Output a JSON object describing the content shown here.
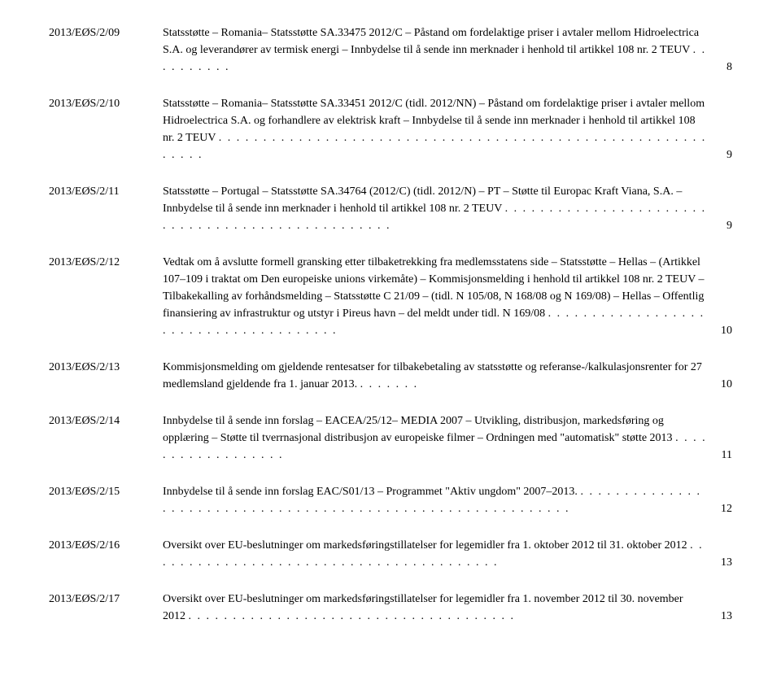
{
  "entries": [
    {
      "id": "2013/EØS/2/09",
      "text": "Statsstøtte – Romania– Statsstøtte SA.33475 2012/C – Påstand om fordelaktige priser i avtaler mellom Hidroelectrica S.A. og leverandører av termisk energi – Innbydelse til å sende inn merknader i henhold til artikkel 108 nr. 2 TEUV",
      "dots": ". . . . . . . . . .",
      "page": "8"
    },
    {
      "id": "2013/EØS/2/10",
      "text": "Statsstøtte – Romania– Statsstøtte SA.33451 2012/C (tidl. 2012/NN) – Påstand om fordelaktige priser i avtaler mellom Hidroelectrica S.A. og forhandlere av elektrisk kraft – Innbydelse til å sende inn merknader i henhold til artikkel 108 nr. 2 TEUV",
      "dots": ". . . . . . . . . . . . . . . . . . . . . . . . . . . . . . . . . . . . . . . . . . . . . . . . . . . . . . . . . . . .",
      "page": "9"
    },
    {
      "id": "2013/EØS/2/11",
      "text": "Statsstøtte – Portugal – Statsstøtte SA.34764 (2012/C) (tidl. 2012/N) – PT – Støtte til Europac Kraft Viana, S.A. – Innbydelse til å sende inn merknader i henhold til artikkel 108 nr. 2 TEUV",
      "dots": ". . . . . . . . . . . . . . . . . . . . . . . . . . . . . . . . . . . . . . . . . . . . . . . . .",
      "page": "9"
    },
    {
      "id": "2013/EØS/2/12",
      "text": "Vedtak om å avslutte formell gransking etter tilbaketrekking fra medlemsstatens side – Statsstøtte – Hellas – (Artikkel 107–109 i traktat om Den europeiske unions virkemåte) – Kommisjonsmelding i henhold til artikkel 108 nr. 2 TEUV – Tilbakekalling av forhåndsmelding – Statsstøtte C 21/09 – (tidl. N 105/08, N 168/08 og N 169/08) – Hellas – Offentlig finansiering av infrastruktur og utstyr i Pireus havn – del meldt under tidl. N 169/08",
      "dots": ". . . . . . . . . . . . . . . . . . . . . . . . . . . . . . . . . . . . . .",
      "page": "10"
    },
    {
      "id": "2013/EØS/2/13",
      "text": "Kommisjonsmelding om gjeldende rentesatser for tilbakebetaling av statsstøtte og referanse-/kalkulasjonsrenter for 27 medlemsland gjeldende fra 1. januar 2013.",
      "dots": ". . . . . . .",
      "page": "10"
    },
    {
      "id": "2013/EØS/2/14",
      "text": "Innbydelse til å sende inn forslag – EACEA/25/12– MEDIA 2007 – Utvikling, distribusjon, markedsføring og opplæring – Støtte til tverrnasjonal distribusjon av europeiske filmer – Ordningen med \"automatisk\" støtte 2013",
      "dots": ". . . . . . . . . . . . . . . . . .",
      "page": "11"
    },
    {
      "id": "2013/EØS/2/15",
      "text": "Innbydelse til å sende inn forslag EAC/S01/13 – Programmet \"Aktiv ungdom\" 2007–2013.",
      "dots": ". . . . . . . . . . . . . . . . . . . . . . . . . . . . . . . . . . . . . . . . . . . . . . . . . . . . . . . . . . . .",
      "page": "12"
    },
    {
      "id": "2013/EØS/2/16",
      "text": "Oversikt over EU-beslutninger om markedsføringstillatelser for legemidler fra 1. oktober 2012 til 31. oktober 2012",
      "dots": ". . . . . . . . . . . . . . . . . . . . . . . . . . . . . . . . . . . . . . . .",
      "page": "13"
    },
    {
      "id": "2013/EØS/2/17",
      "text": "Oversikt over EU-beslutninger om markedsføringstillatelser for legemidler fra 1. november 2012 til 30. november 2012",
      "dots": ". . . . . . . . . . . . . . . . . . . . . . . . . . . . . . . . . . . . .",
      "page": "13"
    }
  ]
}
